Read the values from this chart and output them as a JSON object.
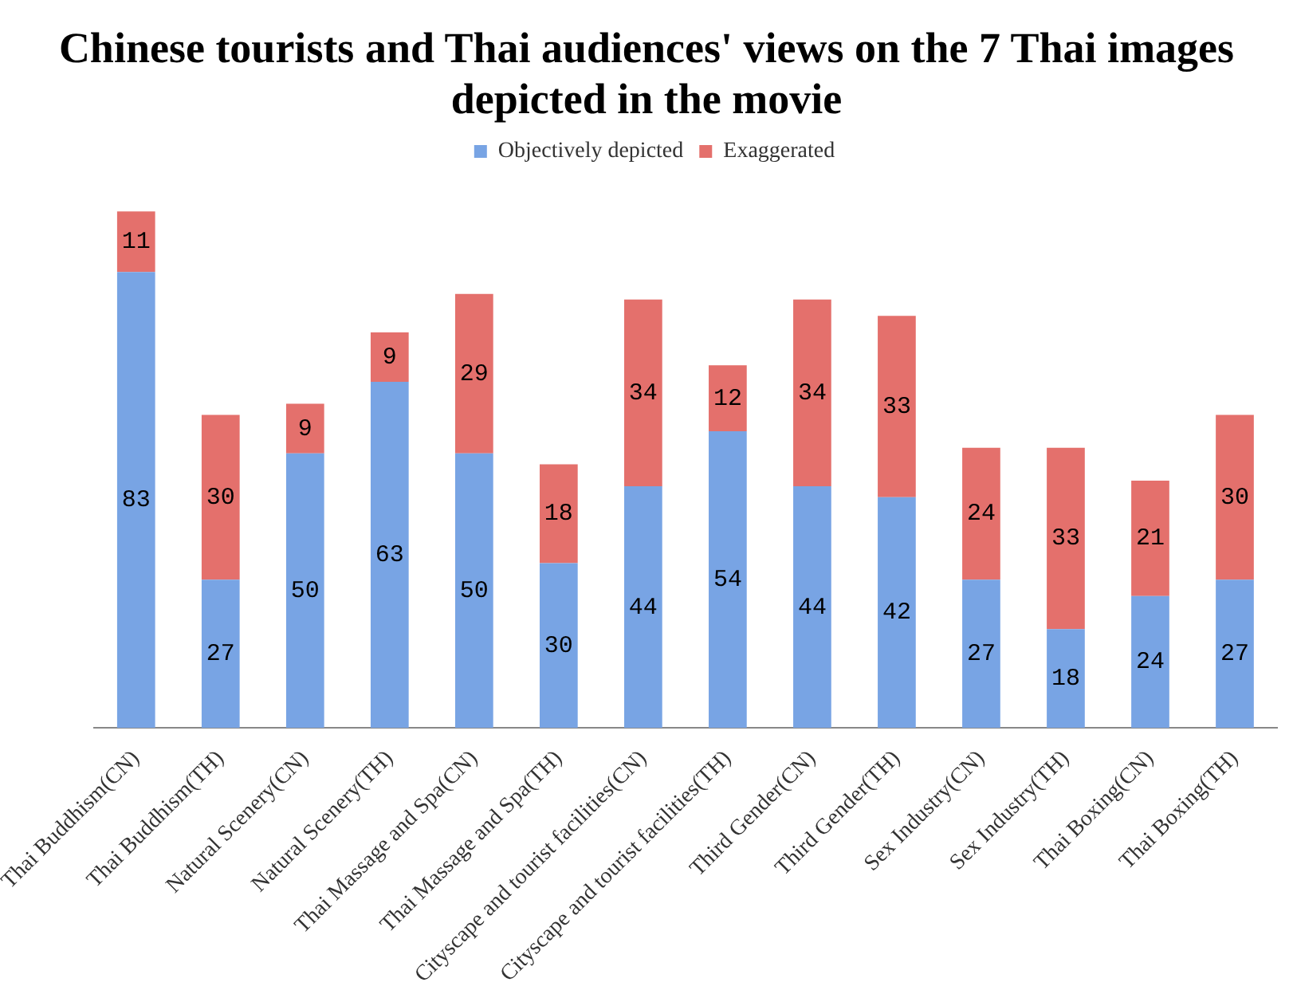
{
  "chart_data": {
    "type": "bar",
    "stacked": true,
    "data_labels": true,
    "grid": false,
    "legend": "top",
    "title": "Chinese tourists and Thai audiences' views on the 7 Thai images depicted in the movie",
    "categories": [
      "Thai Buddhism(CN)",
      "Thai Buddhism(TH)",
      "Natural Scenery(CN)",
      "Natural Scenery(TH)",
      "Thai Massage and Spa(CN)",
      "Thai Massage and Spa(TH)",
      "Cityscape and tourist facilities(CN)",
      "Cityscape and tourist facilities(TH)",
      "Third Gender(CN)",
      "Third Gender(TH)",
      "Sex Industry(CN)",
      "Sex Industry(TH)",
      "Thai Boxing(CN)",
      "Thai Boxing(TH)"
    ],
    "series": [
      {
        "name": "Objectively depicted",
        "color": "#78a4e4",
        "values": [
          83,
          27,
          50,
          63,
          50,
          30,
          44,
          54,
          44,
          42,
          27,
          18,
          24,
          27
        ]
      },
      {
        "name": "Exaggerated",
        "color": "#e4706c",
        "values": [
          11,
          30,
          9,
          9,
          29,
          18,
          34,
          12,
          34,
          33,
          24,
          33,
          21,
          30
        ]
      }
    ]
  }
}
